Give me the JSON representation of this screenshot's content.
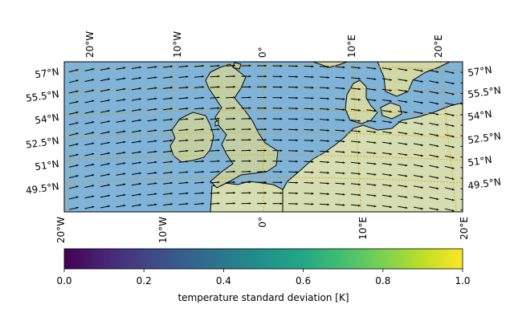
{
  "map": {
    "top_lon_labels": [
      "20°W",
      "10°W",
      "0°",
      "10°E",
      "20°E"
    ],
    "bottom_lon_labels": [
      "20°W",
      "10°W",
      "0°",
      "10°E",
      "20°E"
    ],
    "left_lat_labels": [
      "57°N",
      "55.5°N",
      "54°N",
      "52.5°N",
      "51°N",
      "49.5°N"
    ],
    "right_lat_labels": [
      "57°N",
      "55.5°N",
      "54°N",
      "52.5°N",
      "51°N",
      "49.5°N"
    ],
    "extent": {
      "lon_min": -20,
      "lon_max": 20,
      "lat_min": 48,
      "lat_max": 57.5
    },
    "colors": {
      "sea": "#7fb3d8",
      "land": "#c9d3a8",
      "land_light": "#dfe3b4",
      "gridline": "#e0a000",
      "arrow": "#000000"
    },
    "field": "wind vectors on temperature standard deviation background",
    "legend_position": "bottom"
  },
  "colorbar": {
    "label": "temperature standard deviation [K]",
    "ticks": [
      "0.0",
      "0.2",
      "0.4",
      "0.6",
      "0.8",
      "1.0"
    ],
    "range": [
      0.0,
      1.0
    ],
    "colormap": "viridis"
  }
}
